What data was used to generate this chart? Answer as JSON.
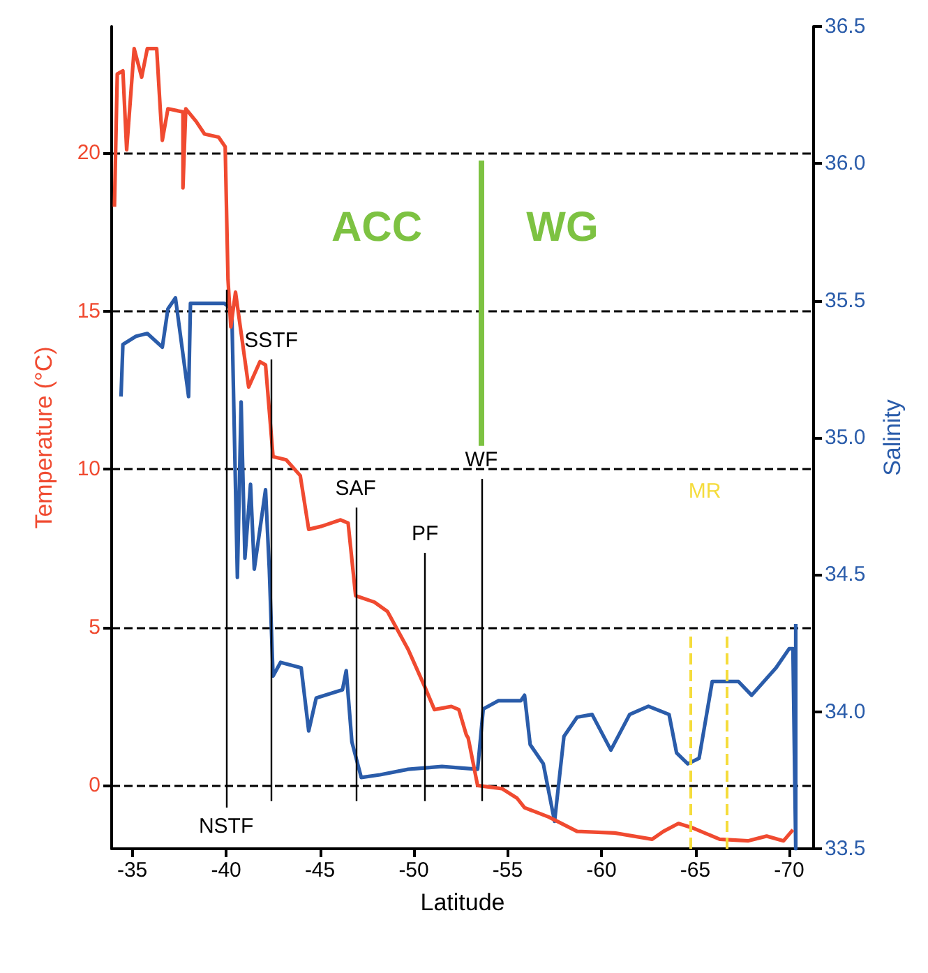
{
  "chart_data": {
    "type": "line",
    "xlabel": "Latitude",
    "ylabel": "Temperature (°C)",
    "y2label": "Salinity",
    "xlim": [
      -33.9,
      -71.3
    ],
    "xticks": [
      -35,
      -40,
      -45,
      -50,
      -55,
      -60,
      -65,
      -70
    ],
    "ylim": [
      -2,
      24
    ],
    "yticks": [
      0,
      5,
      10,
      15,
      20
    ],
    "y2lim": [
      33.5,
      36.5
    ],
    "y2ticks": [
      33.5,
      {
        "value": 34,
        "label": "34.0"
      },
      34.5,
      {
        "value": 35,
        "label": "35.0"
      },
      35.5,
      {
        "value": 36,
        "label": "36.0"
      },
      36.5
    ],
    "grid": "y",
    "marker": "none",
    "line_style": "solid",
    "series": [
      {
        "color": "#f04a30",
        "x": [
          -34.05,
          -34.2,
          -34.5,
          -34.7,
          -35.1,
          -35.5,
          -35.8,
          -36.3,
          -36.5,
          -36.6,
          -36.9,
          -37.7,
          -37.7,
          -37.85,
          -38.4,
          -38.85,
          -39.6,
          -39.95,
          -40.1,
          -40.25,
          -40.5,
          -40.85,
          -41.2,
          -41.8,
          -42.1,
          -42.5,
          -43.2,
          -43.95,
          -44.4,
          -45.1,
          -46.1,
          -46.5,
          -46.9,
          -47.9,
          -48.6,
          -49.7,
          -50.6,
          -51.1,
          -52.0,
          -52.4,
          -52.8,
          -52.9,
          -53.4,
          -54.7,
          -55.5,
          -55.9,
          -57.2,
          -58.7,
          -60.7,
          -62.7,
          -63.3,
          -64.1,
          -64.9,
          -66.3,
          -67.8,
          -68.8,
          -69.7,
          -70.2
        ],
        "values": [
          18.3,
          22.5,
          22.6,
          20.1,
          23.3,
          22.4,
          23.3,
          23.3,
          21.3,
          20.4,
          21.4,
          21.3,
          18.9,
          21.4,
          21.0,
          20.6,
          20.5,
          20.2,
          16.0,
          14.5,
          15.6,
          14.1,
          12.6,
          13.4,
          13.3,
          10.4,
          10.3,
          9.8,
          8.1,
          8.2,
          8.4,
          8.3,
          6.0,
          5.8,
          5.5,
          4.3,
          3.1,
          2.4,
          2.5,
          2.4,
          1.6,
          1.5,
          0.0,
          -0.1,
          -0.4,
          -0.7,
          -1.0,
          -1.45,
          -1.5,
          -1.7,
          -1.45,
          -1.2,
          -1.35,
          -1.7,
          -1.75,
          -1.6,
          -1.75,
          -1.4
        ]
      },
      {
        "color": "#2a5caa",
        "axis": "y2",
        "x": [
          -34.4,
          -34.5,
          -35.2,
          -35.8,
          -36.6,
          -36.9,
          -37.3,
          -38.0,
          -38.1,
          -38.8,
          -39.9,
          -40.3,
          -40.6,
          -40.8,
          -41.0,
          -41.3,
          -41.5,
          -42.1,
          -42.3,
          -42.5,
          -42.9,
          -44.0,
          -44.4,
          -44.8,
          -46.2,
          -46.4,
          -46.7,
          -47.2,
          -48.2,
          -49.7,
          -51.5,
          -53.4,
          -53.7,
          -54.5,
          -55.7,
          -55.9,
          -56.2,
          -56.9,
          -57.5,
          -58.0,
          -58.7,
          -59.5,
          -60.5,
          -61.5,
          -62.5,
          -63.6,
          -64.0,
          -64.6,
          -65.2,
          -65.9,
          -67.3,
          -68.0,
          -69.3,
          -70.0,
          -70.2,
          -70.35,
          -70.35
        ],
        "values": [
          35.15,
          35.34,
          35.37,
          35.38,
          35.33,
          35.47,
          35.51,
          35.15,
          35.49,
          35.49,
          35.49,
          35.47,
          34.49,
          35.13,
          34.56,
          34.83,
          34.52,
          34.81,
          34.52,
          34.13,
          34.18,
          34.16,
          33.93,
          34.05,
          34.08,
          34.15,
          33.89,
          33.76,
          33.77,
          33.79,
          33.8,
          33.79,
          34.01,
          34.04,
          34.04,
          34.06,
          33.88,
          33.81,
          33.6,
          33.91,
          33.98,
          33.99,
          33.86,
          33.99,
          34.02,
          33.99,
          33.85,
          33.81,
          33.83,
          34.11,
          34.11,
          34.06,
          34.16,
          34.23,
          34.23,
          33.5,
          34.32
        ]
      }
    ],
    "ref_lines": [
      {
        "axis": "x",
        "value": -40.0,
        "label": "NSTF",
        "color": "#000000"
      },
      {
        "axis": "x",
        "value": -42.4,
        "label": "SSTF",
        "color": "#000000"
      },
      {
        "axis": "x",
        "value": -46.9,
        "label": "SAF",
        "color": "#000000"
      },
      {
        "axis": "x",
        "value": -50.6,
        "label": "PF",
        "color": "#000000"
      },
      {
        "axis": "x",
        "value": -53.6,
        "label": "WF",
        "color": "#000000"
      },
      {
        "axis": "x",
        "value": -53.6,
        "color": "#7dc242"
      },
      {
        "axis": "x",
        "value": -64.75,
        "color": "#f5dc3c",
        "line_style": "dashed"
      },
      {
        "axis": "x",
        "value": -66.7,
        "color": "#f5dc3c",
        "line_style": "dashed"
      }
    ],
    "annotations": [
      "ACC",
      "WG",
      "MR"
    ]
  }
}
